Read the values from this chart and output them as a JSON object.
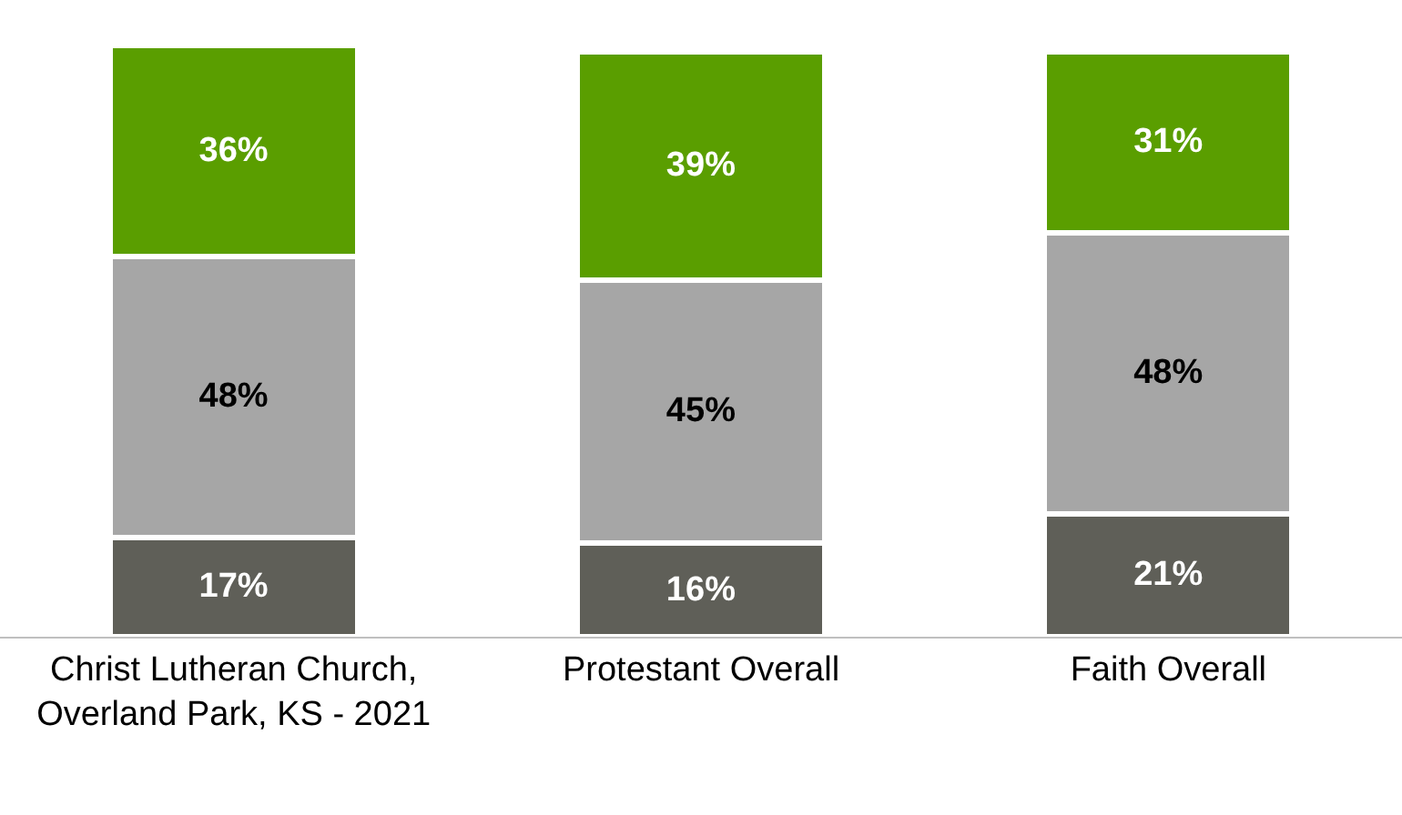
{
  "chart_data": {
    "type": "bar",
    "stacked": true,
    "categories": [
      "Christ Lutheran Church, Overland Park, KS - 2021",
      "Protestant Overall",
      "Faith Overall"
    ],
    "series": [
      {
        "color": "#5f5f58",
        "values": [
          17,
          16,
          21
        ],
        "value_labels": [
          "17%",
          "16%",
          "21%"
        ]
      },
      {
        "color": "#a6a6a6",
        "values": [
          48,
          45,
          48
        ],
        "value_labels": [
          "48%",
          "45%",
          "48%"
        ]
      },
      {
        "color": "#5a9e00",
        "values": [
          36,
          39,
          31
        ],
        "value_labels": [
          "36%",
          "39%",
          "31%"
        ]
      }
    ]
  }
}
